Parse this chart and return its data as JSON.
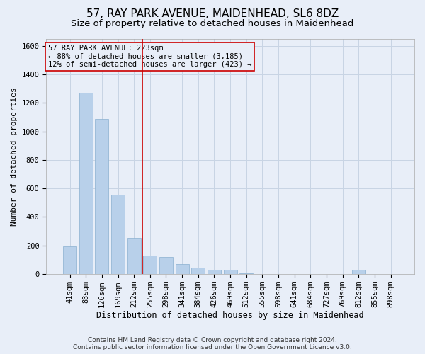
{
  "title": "57, RAY PARK AVENUE, MAIDENHEAD, SL6 8DZ",
  "subtitle": "Size of property relative to detached houses in Maidenhead",
  "xlabel": "Distribution of detached houses by size in Maidenhead",
  "ylabel": "Number of detached properties",
  "footer_line1": "Contains HM Land Registry data © Crown copyright and database right 2024.",
  "footer_line2": "Contains public sector information licensed under the Open Government Licence v3.0.",
  "bar_color": "#b8d0ea",
  "bar_edge_color": "#8ab0d0",
  "grid_color": "#c8d4e4",
  "bg_color": "#e8eef8",
  "vline_color": "#cc0000",
  "annotation_box_color": "#cc0000",
  "annotation_line1": "57 RAY PARK AVENUE: 223sqm",
  "annotation_line2": "← 88% of detached houses are smaller (3,185)",
  "annotation_line3": "12% of semi-detached houses are larger (423) →",
  "categories": [
    "41sqm",
    "83sqm",
    "126sqm",
    "169sqm",
    "212sqm",
    "255sqm",
    "298sqm",
    "341sqm",
    "384sqm",
    "426sqm",
    "469sqm",
    "512sqm",
    "555sqm",
    "598sqm",
    "641sqm",
    "684sqm",
    "727sqm",
    "769sqm",
    "812sqm",
    "855sqm",
    "898sqm"
  ],
  "values": [
    195,
    1270,
    1090,
    555,
    250,
    130,
    120,
    70,
    45,
    30,
    30,
    5,
    0,
    0,
    0,
    0,
    0,
    0,
    30,
    0,
    0
  ],
  "ylim": [
    0,
    1650
  ],
  "yticks": [
    0,
    200,
    400,
    600,
    800,
    1000,
    1200,
    1400,
    1600
  ],
  "vline_position": 4.5,
  "title_fontsize": 11,
  "subtitle_fontsize": 9.5,
  "xlabel_fontsize": 8.5,
  "ylabel_fontsize": 8,
  "tick_fontsize": 7.5,
  "annotation_fontsize": 7.5,
  "footer_fontsize": 6.5
}
